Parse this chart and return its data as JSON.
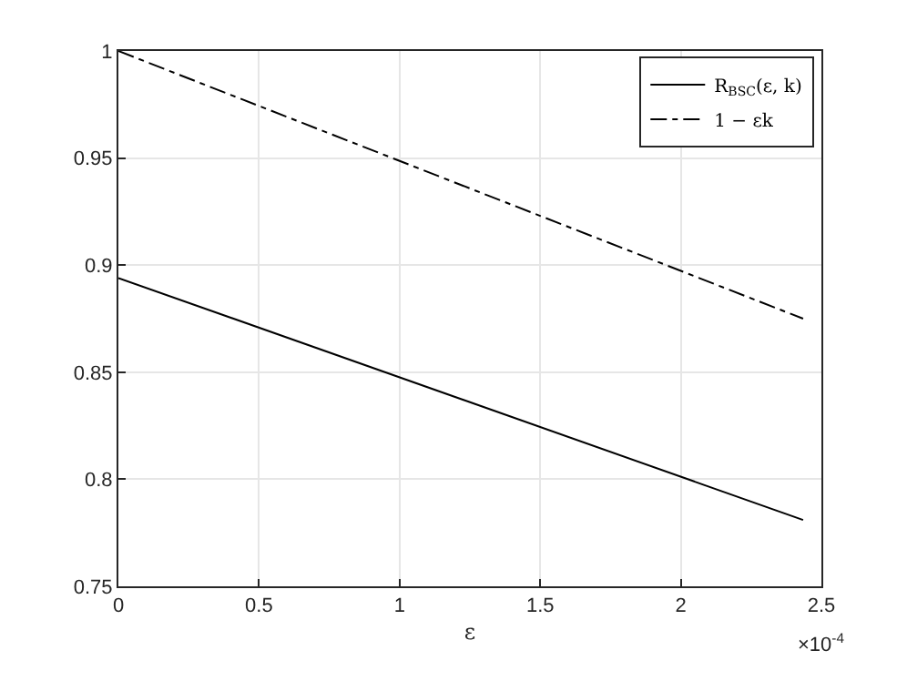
{
  "chart_data": {
    "type": "line",
    "xlabel": "ε",
    "x": [
      0,
      2.435
    ],
    "series": [
      {
        "name": "R$_{BSC}$(ε, k)",
        "color": "#000000",
        "values": [
          0.894,
          0.781
        ],
        "line_style": "solid"
      },
      {
        "name": "1 − εk",
        "color": "#000000",
        "values": [
          1.0,
          0.875
        ],
        "line_style": "dashdot"
      }
    ],
    "xlim": [
      0,
      2.5
    ],
    "xticks": [
      0,
      0.5,
      1,
      1.5,
      2,
      2.5
    ],
    "ylim": [
      0.75,
      1
    ],
    "yticks": [
      0.75,
      0.8,
      0.85,
      0.9,
      0.95,
      1
    ],
    "annotations": [
      "×10$^{-4}$"
    ],
    "grid": true,
    "legend": "top right",
    "marker": "none"
  }
}
